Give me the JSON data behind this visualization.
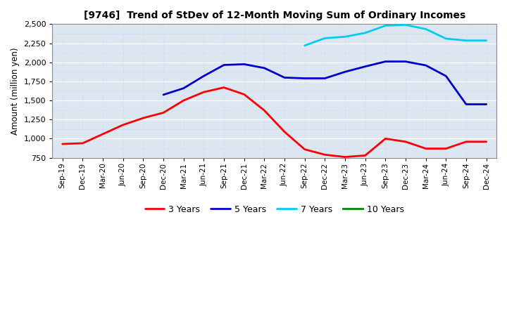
{
  "title": "[9746]  Trend of StDev of 12-Month Moving Sum of Ordinary Incomes",
  "ylabel": "Amount (million yen)",
  "ylim": [
    750,
    2500
  ],
  "yticks": [
    750,
    1000,
    1250,
    1500,
    1750,
    2000,
    2250,
    2500
  ],
  "plot_bg_color": "#dce6f0",
  "fig_bg_color": "#ffffff",
  "grid_color": "#ffffff",
  "grid_minor_color": "#c8d8e8",
  "x_labels": [
    "Sep-19",
    "Dec-19",
    "Mar-20",
    "Jun-20",
    "Sep-20",
    "Dec-20",
    "Mar-21",
    "Jun-21",
    "Sep-21",
    "Dec-21",
    "Mar-22",
    "Jun-22",
    "Sep-22",
    "Dec-22",
    "Mar-23",
    "Jun-23",
    "Sep-23",
    "Dec-23",
    "Mar-24",
    "Jun-24",
    "Sep-24",
    "Dec-24"
  ],
  "series": {
    "3 Years": {
      "color": "#ff0000",
      "values": [
        930,
        940,
        1060,
        1180,
        1270,
        1340,
        1500,
        1610,
        1670,
        1580,
        1370,
        1090,
        860,
        790,
        760,
        780,
        1000,
        960,
        870,
        870,
        960,
        960
      ]
    },
    "5 Years": {
      "color": "#0000cc",
      "values": [
        null,
        null,
        null,
        null,
        null,
        1575,
        1660,
        1820,
        1965,
        1975,
        1925,
        1800,
        1790,
        1790,
        1875,
        1945,
        2010,
        2010,
        1960,
        1820,
        1450,
        1450
      ]
    },
    "7 Years": {
      "color": "#00ccee",
      "values": [
        null,
        null,
        null,
        null,
        null,
        null,
        null,
        null,
        null,
        null,
        null,
        null,
        2220,
        2315,
        2335,
        2385,
        2480,
        2490,
        2435,
        2310,
        2285,
        2285
      ]
    },
    "10 Years": {
      "color": "#008800",
      "values": [
        null,
        null,
        null,
        null,
        null,
        null,
        null,
        null,
        null,
        null,
        null,
        null,
        null,
        null,
        null,
        null,
        null,
        null,
        null,
        null,
        null,
        null
      ]
    }
  },
  "legend_order": [
    "3 Years",
    "5 Years",
    "7 Years",
    "10 Years"
  ]
}
